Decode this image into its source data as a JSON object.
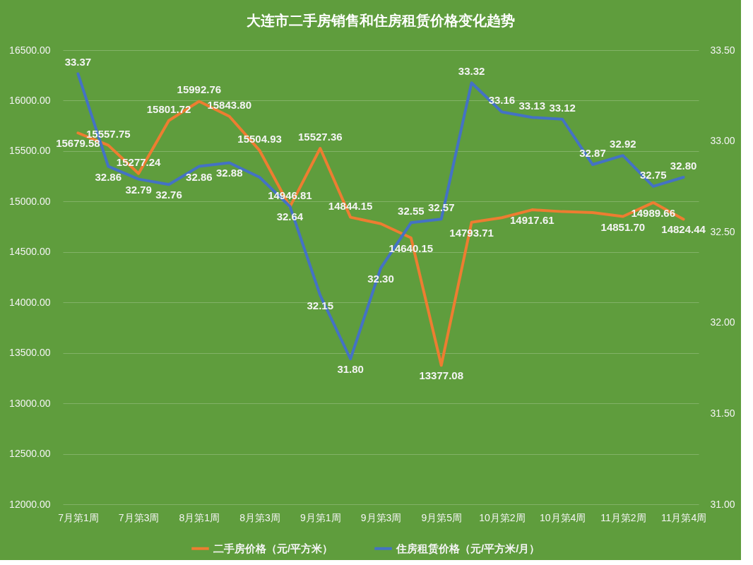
{
  "chart_data": {
    "type": "line",
    "title": "大连市二手房销售和住房租赁价格变化趋势",
    "categories": [
      "7月第1周",
      null,
      "7月第3周",
      null,
      "8月第1周",
      null,
      "8月第3周",
      null,
      "9月第1周",
      null,
      "9月第3周",
      null,
      "9月第5周",
      null,
      "10月第2周",
      null,
      "10月第4周",
      null,
      "11月第2周",
      null,
      "11月第4周"
    ],
    "series": [
      {
        "name": "二手房价格（元/平方米）",
        "color": "#ed7d31",
        "values": [
          15679.58,
          15557.75,
          15277.24,
          15801.72,
          15992.76,
          15843.8,
          15504.93,
          14946.81,
          15527.36,
          14844.15,
          14780,
          14640.15,
          13377.08,
          14793.71,
          14840,
          14917.61,
          14900,
          14890,
          14851.7,
          14989.66,
          14824.44
        ],
        "value_labels": [
          "15679.58",
          "15557.75",
          "15277.24",
          "15801.72",
          "15992.76",
          "15843.80",
          "15504.93",
          "14946.81",
          "15527.36",
          "14844.15",
          null,
          "14640.15",
          "13377.08",
          "14793.71",
          null,
          "14917.61",
          null,
          null,
          "14851.70",
          "14989.66",
          "14824.44"
        ]
      },
      {
        "name": "住房租赁价格（元/平方米/月）",
        "color": "#4472c4",
        "axis": "y2",
        "values": [
          33.37,
          32.86,
          32.79,
          32.76,
          32.86,
          32.88,
          32.8,
          32.64,
          32.15,
          31.8,
          32.3,
          32.55,
          32.57,
          33.32,
          33.16,
          33.13,
          33.12,
          32.87,
          32.92,
          32.75,
          32.8
        ],
        "value_labels": [
          "33.37",
          "32.86",
          "32.79",
          "32.76",
          "32.86",
          "32.88",
          null,
          "32.64",
          "32.15",
          "31.80",
          "32.30",
          "32.55",
          "32.57",
          "33.32",
          "33.16",
          "33.13",
          "33.12",
          "32.87",
          "32.92",
          "32.75",
          "32.80"
        ]
      }
    ],
    "ylim": [
      12000,
      16500
    ],
    "yticks": [
      {
        "value": 12000,
        "label": "12000.00"
      },
      {
        "value": 12500,
        "label": "12500.00"
      },
      {
        "value": 13000,
        "label": "13000.00"
      },
      {
        "value": 13500,
        "label": "13500.00"
      },
      {
        "value": 14000,
        "label": "14000.00"
      },
      {
        "value": 14500,
        "label": "14500.00"
      },
      {
        "value": 15000,
        "label": "15000.00"
      },
      {
        "value": 15500,
        "label": "15500.00"
      },
      {
        "value": 16000,
        "label": "16000.00"
      },
      {
        "value": 16500,
        "label": "16500.00"
      }
    ],
    "y2lim": [
      31,
      33.5
    ],
    "y2ticks": [
      {
        "value": 31,
        "label": "31.00"
      },
      {
        "value": 31.5,
        "label": "31.50"
      },
      {
        "value": 32,
        "label": "32.00"
      },
      {
        "value": 32.5,
        "label": "32.50"
      },
      {
        "value": 33,
        "label": "33.00"
      },
      {
        "value": 33.5,
        "label": "33.50"
      }
    ],
    "grid": "y",
    "legend": "bottom"
  }
}
